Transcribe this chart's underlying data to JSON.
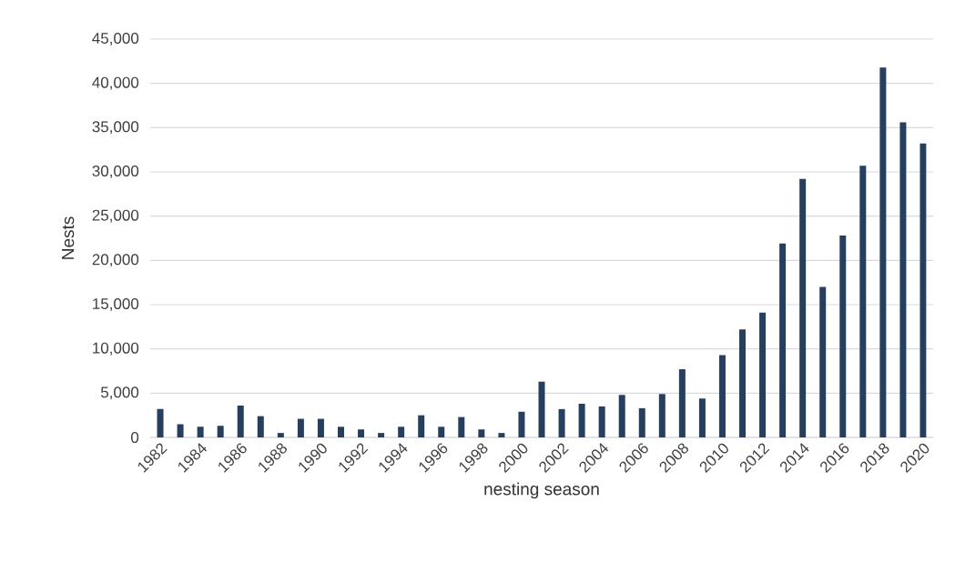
{
  "chart_data": {
    "type": "bar",
    "xlabel": "nesting season",
    "ylabel": "Nests",
    "categories": [
      "1982",
      null,
      "1984",
      null,
      "1986",
      null,
      "1988",
      null,
      "1990",
      null,
      "1992",
      null,
      "1994",
      null,
      "1996",
      null,
      "1998",
      null,
      "2000",
      null,
      "2002",
      null,
      "2004",
      null,
      "2006",
      null,
      "2008",
      null,
      "2010",
      null,
      "2012",
      null,
      "2014",
      null,
      "2016",
      null,
      "2018",
      null,
      "2020"
    ],
    "values": [
      3200,
      1500,
      1200,
      1300,
      3600,
      2400,
      500,
      2100,
      2100,
      1200,
      900,
      500,
      1200,
      2500,
      1200,
      2300,
      900,
      500,
      2900,
      6300,
      3200,
      3800,
      3500,
      4800,
      3300,
      4900,
      7700,
      4400,
      9300,
      12200,
      14100,
      21900,
      29200,
      17000,
      22800,
      30700,
      41800,
      35600,
      33200
    ],
    "color": "#253f61",
    "ylim": [
      0,
      45000
    ],
    "yticks": [
      0,
      {
        "value": 5000,
        "label": "5,000"
      },
      {
        "value": 10000,
        "label": "10,000"
      },
      {
        "value": 15000,
        "label": "15,000"
      },
      {
        "value": 20000,
        "label": "20,000"
      },
      {
        "value": 25000,
        "label": "25,000"
      },
      {
        "value": 30000,
        "label": "30,000"
      },
      {
        "value": 35000,
        "label": "35,000"
      },
      {
        "value": 40000,
        "label": "40,000"
      },
      {
        "value": 45000,
        "label": "45,000"
      }
    ],
    "grid": "y"
  }
}
